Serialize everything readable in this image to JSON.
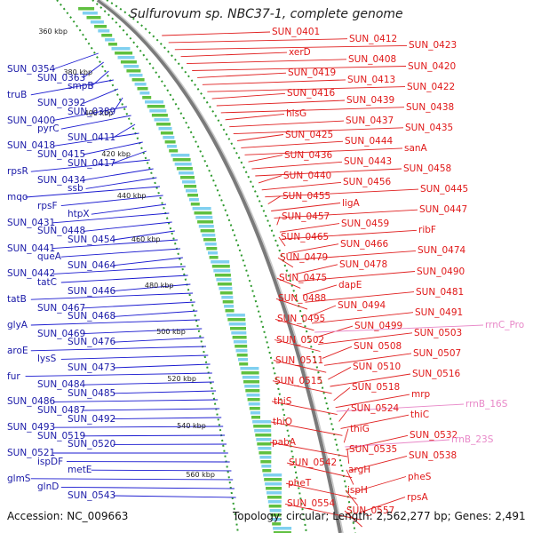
{
  "title": "Sulfurovum sp. NBC37-1, complete genome",
  "accession": "Accession: NC_009663",
  "topology": "Topology: circular; Length: 2,562,277 bp; Genes: 2,491",
  "colors": {
    "left_labels": "#1a1aa8",
    "right_labels": "#e01818",
    "rna_labels": "#e888c8",
    "backbone": "#7a7a7a",
    "dotted_tracks": "#2e9a2e"
  },
  "kbp_ticks": [
    "360 kbp",
    "380 kbp",
    "400 kbp",
    "420 kbp",
    "440 kbp",
    "460 kbp",
    "480 kbp",
    "500 kbp",
    "520 kbp",
    "540 kbp",
    "560 kbp"
  ],
  "left_genes": [
    "SUN_0354",
    "SUN_0363",
    "smpB",
    "truB",
    "SUN_0392",
    "SUN_0389",
    "SUN_0400",
    "pyrC",
    "SUN_0411",
    "SUN_0418",
    "SUN_0415",
    "SUN_0417",
    "rpsR",
    "SUN_0434",
    "ssb",
    "mqo",
    "rpsF",
    "htpX",
    "SUN_0431",
    "SUN_0448",
    "SUN_0454",
    "SUN_0441",
    "queA",
    "SUN_0464",
    "SUN_0442",
    "tatC",
    "SUN_0446",
    "tatB",
    "SUN_0467",
    "SUN_0468",
    "glyA",
    "SUN_0469",
    "SUN_0476",
    "aroE",
    "lysS",
    "SUN_0473",
    "fur",
    "SUN_0484",
    "SUN_0485",
    "SUN_0486",
    "SUN_0487",
    "SUN_0492",
    "SUN_0493",
    "SUN_0519",
    "SUN_0520",
    "SUN_0521",
    "ispDF",
    "metE",
    "glmS",
    "glnD",
    "SUN_0543"
  ],
  "right_genes": [
    "SUN_0401",
    "SUN_0412",
    "SUN_0423",
    "xerD",
    "SUN_0408",
    "SUN_0420",
    "SUN_0419",
    "SUN_0413",
    "SUN_0422",
    "SUN_0416",
    "SUN_0439",
    "SUN_0438",
    "hisG",
    "SUN_0437",
    "SUN_0435",
    "SUN_0425",
    "SUN_0444",
    "sanA",
    "SUN_0436",
    "SUN_0443",
    "SUN_0458",
    "SUN_0440",
    "SUN_0456",
    "SUN_0445",
    "SUN_0455",
    "ligA",
    "SUN_0447",
    "SUN_0457",
    "SUN_0459",
    "ribF",
    "SUN_0465",
    "SUN_0466",
    "SUN_0474",
    "SUN_0479",
    "SUN_0478",
    "SUN_0490",
    "SUN_0475",
    "dapE",
    "SUN_0481",
    "SUN_0488",
    "SUN_0494",
    "SUN_0491",
    "SUN_0495",
    "SUN_0499",
    "SUN_0503",
    "SUN_0502",
    "SUN_0508",
    "SUN_0507",
    "SUN_0511",
    "SUN_0510",
    "SUN_0516",
    "SUN_0515",
    "SUN_0518",
    "mrp",
    "thiS",
    "SUN_0524",
    "thiC",
    "thiO",
    "thiG",
    "SUN_0532",
    "pabA",
    "SUN_0535",
    "SUN_0538",
    "SUN_0542",
    "argH",
    "pheS",
    "pheT",
    "ispH",
    "rpsA",
    "SUN_0554",
    "SUN_0557"
  ],
  "rna_genes": [
    "rrnC_Pro",
    "rrnB_16S",
    "rrnB_23S"
  ]
}
